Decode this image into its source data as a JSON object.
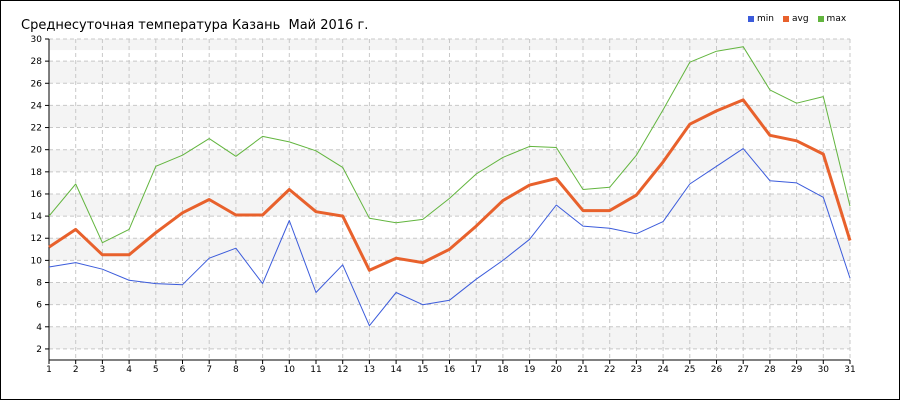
{
  "chart_data": {
    "type": "line",
    "title": "Среднесуточная температура Казань  Май 2016 г.",
    "categories": [
      "1",
      "2",
      "3",
      "4",
      "5",
      "6",
      "7",
      "8",
      "9",
      "10",
      "11",
      "12",
      "13",
      "14",
      "15",
      "16",
      "17",
      "18",
      "19",
      "20",
      "21",
      "22",
      "23",
      "24",
      "25",
      "26",
      "27",
      "28",
      "29",
      "30",
      "31"
    ],
    "yticks": [
      "2",
      "4",
      "6",
      "8",
      "10",
      "12",
      "14",
      "16",
      "18",
      "20",
      "22",
      "24",
      "26",
      "28",
      "30"
    ],
    "ylim": [
      1,
      30
    ],
    "grid": true,
    "legend_position": "top-right",
    "series": [
      {
        "name": "min",
        "color": "#3b5bdb",
        "values": [
          9.4,
          9.8,
          9.2,
          8.2,
          7.9,
          7.8,
          10.2,
          11.1,
          7.9,
          13.6,
          7.1,
          9.6,
          4.1,
          7.1,
          6.0,
          6.4,
          8.3,
          10.0,
          11.9,
          15.0,
          13.1,
          12.9,
          12.4,
          13.5,
          16.9,
          18.5,
          20.1,
          17.2,
          17.0,
          15.7,
          8.4
        ]
      },
      {
        "name": "avg",
        "color": "#e8612c",
        "values": [
          11.2,
          12.8,
          10.5,
          10.5,
          12.5,
          14.3,
          15.5,
          14.1,
          14.1,
          16.4,
          14.4,
          14.0,
          9.1,
          10.2,
          9.8,
          11.0,
          13.1,
          15.4,
          16.8,
          17.4,
          14.5,
          14.5,
          15.9,
          18.9,
          22.3,
          23.5,
          24.5,
          21.3,
          20.8,
          19.6,
          11.8
        ]
      },
      {
        "name": "max",
        "color": "#62b53e",
        "values": [
          14.0,
          16.9,
          11.6,
          12.8,
          18.5,
          19.5,
          21.0,
          19.4,
          21.2,
          20.7,
          19.9,
          18.4,
          13.8,
          13.4,
          13.7,
          15.6,
          17.8,
          19.3,
          20.3,
          20.2,
          16.4,
          16.6,
          19.5,
          23.6,
          27.9,
          28.9,
          29.3,
          25.4,
          24.2,
          24.8,
          14.9
        ]
      }
    ]
  }
}
